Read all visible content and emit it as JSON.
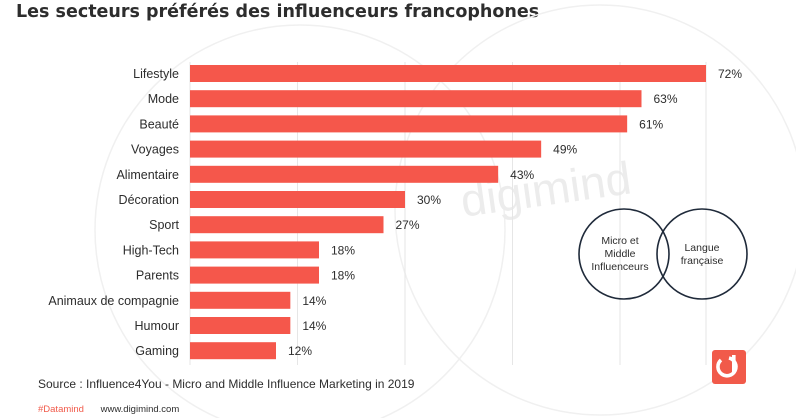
{
  "title": "Les secteurs préférés des influenceurs francophones",
  "watermark": "digimind",
  "venn": {
    "left_label": [
      "Micro et",
      "Middle",
      "Influenceurs"
    ],
    "right_label": [
      "Langue",
      "française"
    ]
  },
  "source": "Source : Influence4You - Micro and Middle Influence Marketing in 2019",
  "footer": {
    "tag": "#Datamind",
    "url": "www.digimind.com"
  },
  "colors": {
    "bar": "#f5574b",
    "accent": "#f15a4a",
    "text": "#2d2d2d",
    "circle": "#1f2a3a"
  },
  "chart_data": {
    "type": "bar",
    "orientation": "horizontal",
    "categories": [
      "Lifestyle",
      "Mode",
      "Beauté",
      "Voyages",
      "Alimentaire",
      "Décoration",
      "Sport",
      "High-Tech",
      "Parents",
      "Animaux de compagnie",
      "Humour",
      "Gaming"
    ],
    "values": [
      72,
      63,
      61,
      49,
      43,
      30,
      27,
      18,
      18,
      14,
      14,
      12
    ],
    "value_labels": [
      "72%",
      "63%",
      "61%",
      "49%",
      "43%",
      "30%",
      "27%",
      "18%",
      "18%",
      "14%",
      "14%",
      "12%"
    ],
    "xlim": [
      0,
      72
    ],
    "grid": true
  }
}
